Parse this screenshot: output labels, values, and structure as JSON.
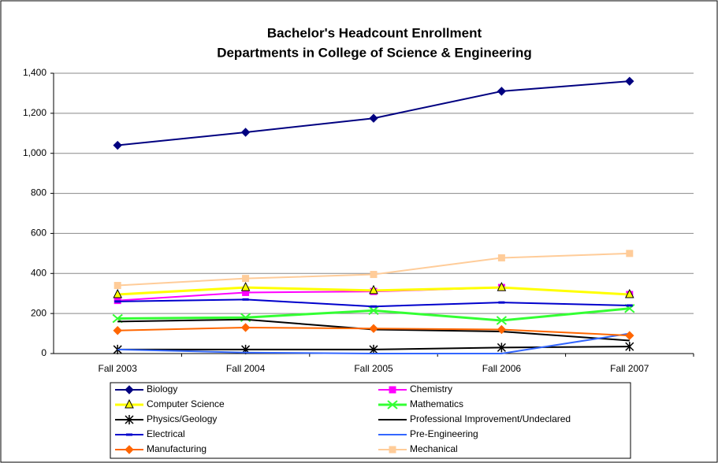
{
  "chart_data": {
    "type": "line",
    "title": [
      "Bachelor's Headcount Enrollment",
      "Departments in College of Science & Engineering"
    ],
    "categories": [
      "Fall 2003",
      "Fall 2004",
      "Fall 2005",
      "Fall 2006",
      "Fall 2007"
    ],
    "ylim": [
      0,
      1400
    ],
    "yticks": [
      0,
      200,
      400,
      600,
      800,
      {
        "value": 1000,
        "label": "1,000"
      },
      {
        "value": 1200,
        "label": "1,200"
      },
      {
        "value": 1400,
        "label": "1,400"
      }
    ],
    "grid": true,
    "series": [
      {
        "name": "Biology",
        "color": "#000080",
        "marker": "diamond",
        "values": [
          1040,
          1105,
          1175,
          1310,
          1360
        ]
      },
      {
        "name": "Chemistry",
        "color": "#ff00ff",
        "marker": "square",
        "values": [
          265,
          305,
          310,
          330,
          295
        ]
      },
      {
        "name": "Computer Science",
        "color": "#ffff00",
        "marker": "triangle",
        "values": [
          295,
          330,
          315,
          330,
          295
        ]
      },
      {
        "name": "Mathematics",
        "color": "#33ff33",
        "marker": "x",
        "values": [
          175,
          180,
          215,
          165,
          225
        ]
      },
      {
        "name": "Physics/Geology",
        "color": "#000000",
        "marker": "asterisk",
        "values": [
          20,
          20,
          20,
          30,
          35
        ]
      },
      {
        "name": "Professional Improvement/Undeclared",
        "color": "#000000",
        "marker": "none",
        "values": [
          160,
          170,
          120,
          110,
          65
        ]
      },
      {
        "name": "Electrical",
        "color": "#0000cc",
        "marker": "dash",
        "values": [
          260,
          270,
          235,
          255,
          240
        ]
      },
      {
        "name": "Pre-Engineering",
        "color": "#3366ff",
        "marker": "none",
        "values": [
          20,
          5,
          0,
          0,
          100
        ]
      },
      {
        "name": "Manufacturing",
        "color": "#ff6600",
        "marker": "diamond",
        "values": [
          115,
          130,
          125,
          120,
          90
        ]
      },
      {
        "name": "Mechanical",
        "color": "#ffcc99",
        "marker": "square",
        "values": [
          340,
          375,
          395,
          478,
          500
        ]
      }
    ]
  }
}
